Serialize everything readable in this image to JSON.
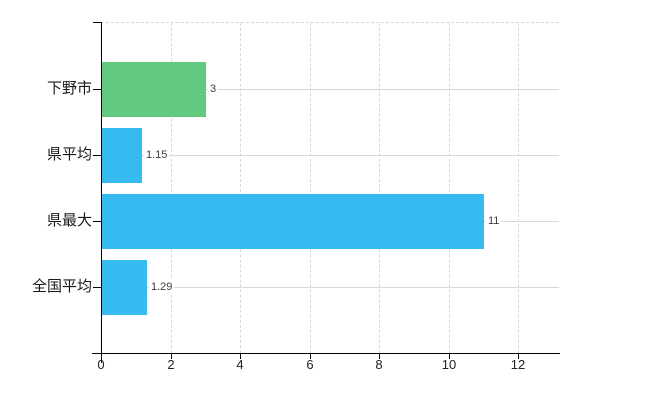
{
  "chart_data": {
    "type": "bar",
    "orientation": "horizontal",
    "title": "",
    "categories": [
      "下野市",
      "県平均",
      "県最大",
      "全国平均"
    ],
    "values": [
      3,
      1.15,
      11,
      1.29
    ],
    "value_labels": [
      "3",
      "1.15",
      "11",
      "1.29"
    ],
    "bar_colors": [
      "#62c97e",
      "#35bbf0",
      "#35bbf0",
      "#35bbf0"
    ],
    "x_ticks": [
      0,
      2,
      4,
      6,
      8,
      10,
      12
    ],
    "x_tick_labels": [
      "0",
      "2",
      "4",
      "6",
      "8",
      "10",
      "12"
    ],
    "xlim": [
      0,
      13.2
    ],
    "grid": true,
    "legend": false,
    "colors": {
      "background": "#ffffff",
      "gridline": "#d8d8d8",
      "axis": "#000000",
      "green_bar": "#62c97e",
      "blue_bar": "#35bbf0",
      "category_text": "#1a1a1a",
      "value_text": "#3c3c3c",
      "tick_text": "#222222"
    }
  }
}
